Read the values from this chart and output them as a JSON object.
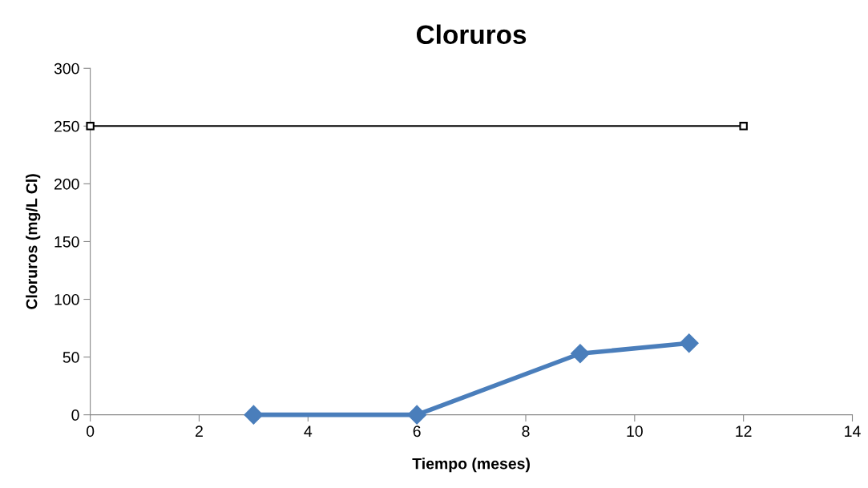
{
  "chart_data": {
    "type": "line",
    "title": "Cloruros",
    "xlabel": "Tiempo (meses)",
    "ylabel": "Cloruros (mg/L Cl)",
    "series": [
      {
        "color": "#4a7ebb",
        "x": [
          3,
          6,
          9,
          11
        ],
        "values": [
          0,
          0,
          53,
          62
        ],
        "marker": "diamond"
      },
      {
        "color": "#000000",
        "x": [
          0,
          12
        ],
        "values": [
          250,
          250
        ],
        "marker": "square"
      }
    ],
    "xlim": [
      0,
      14
    ],
    "xticks": [
      0,
      2,
      4,
      6,
      8,
      10,
      12,
      14
    ],
    "ylim": [
      0,
      300
    ],
    "yticks": [
      0,
      50,
      100,
      150,
      200,
      250,
      300
    ],
    "grid": false,
    "legend": false
  }
}
